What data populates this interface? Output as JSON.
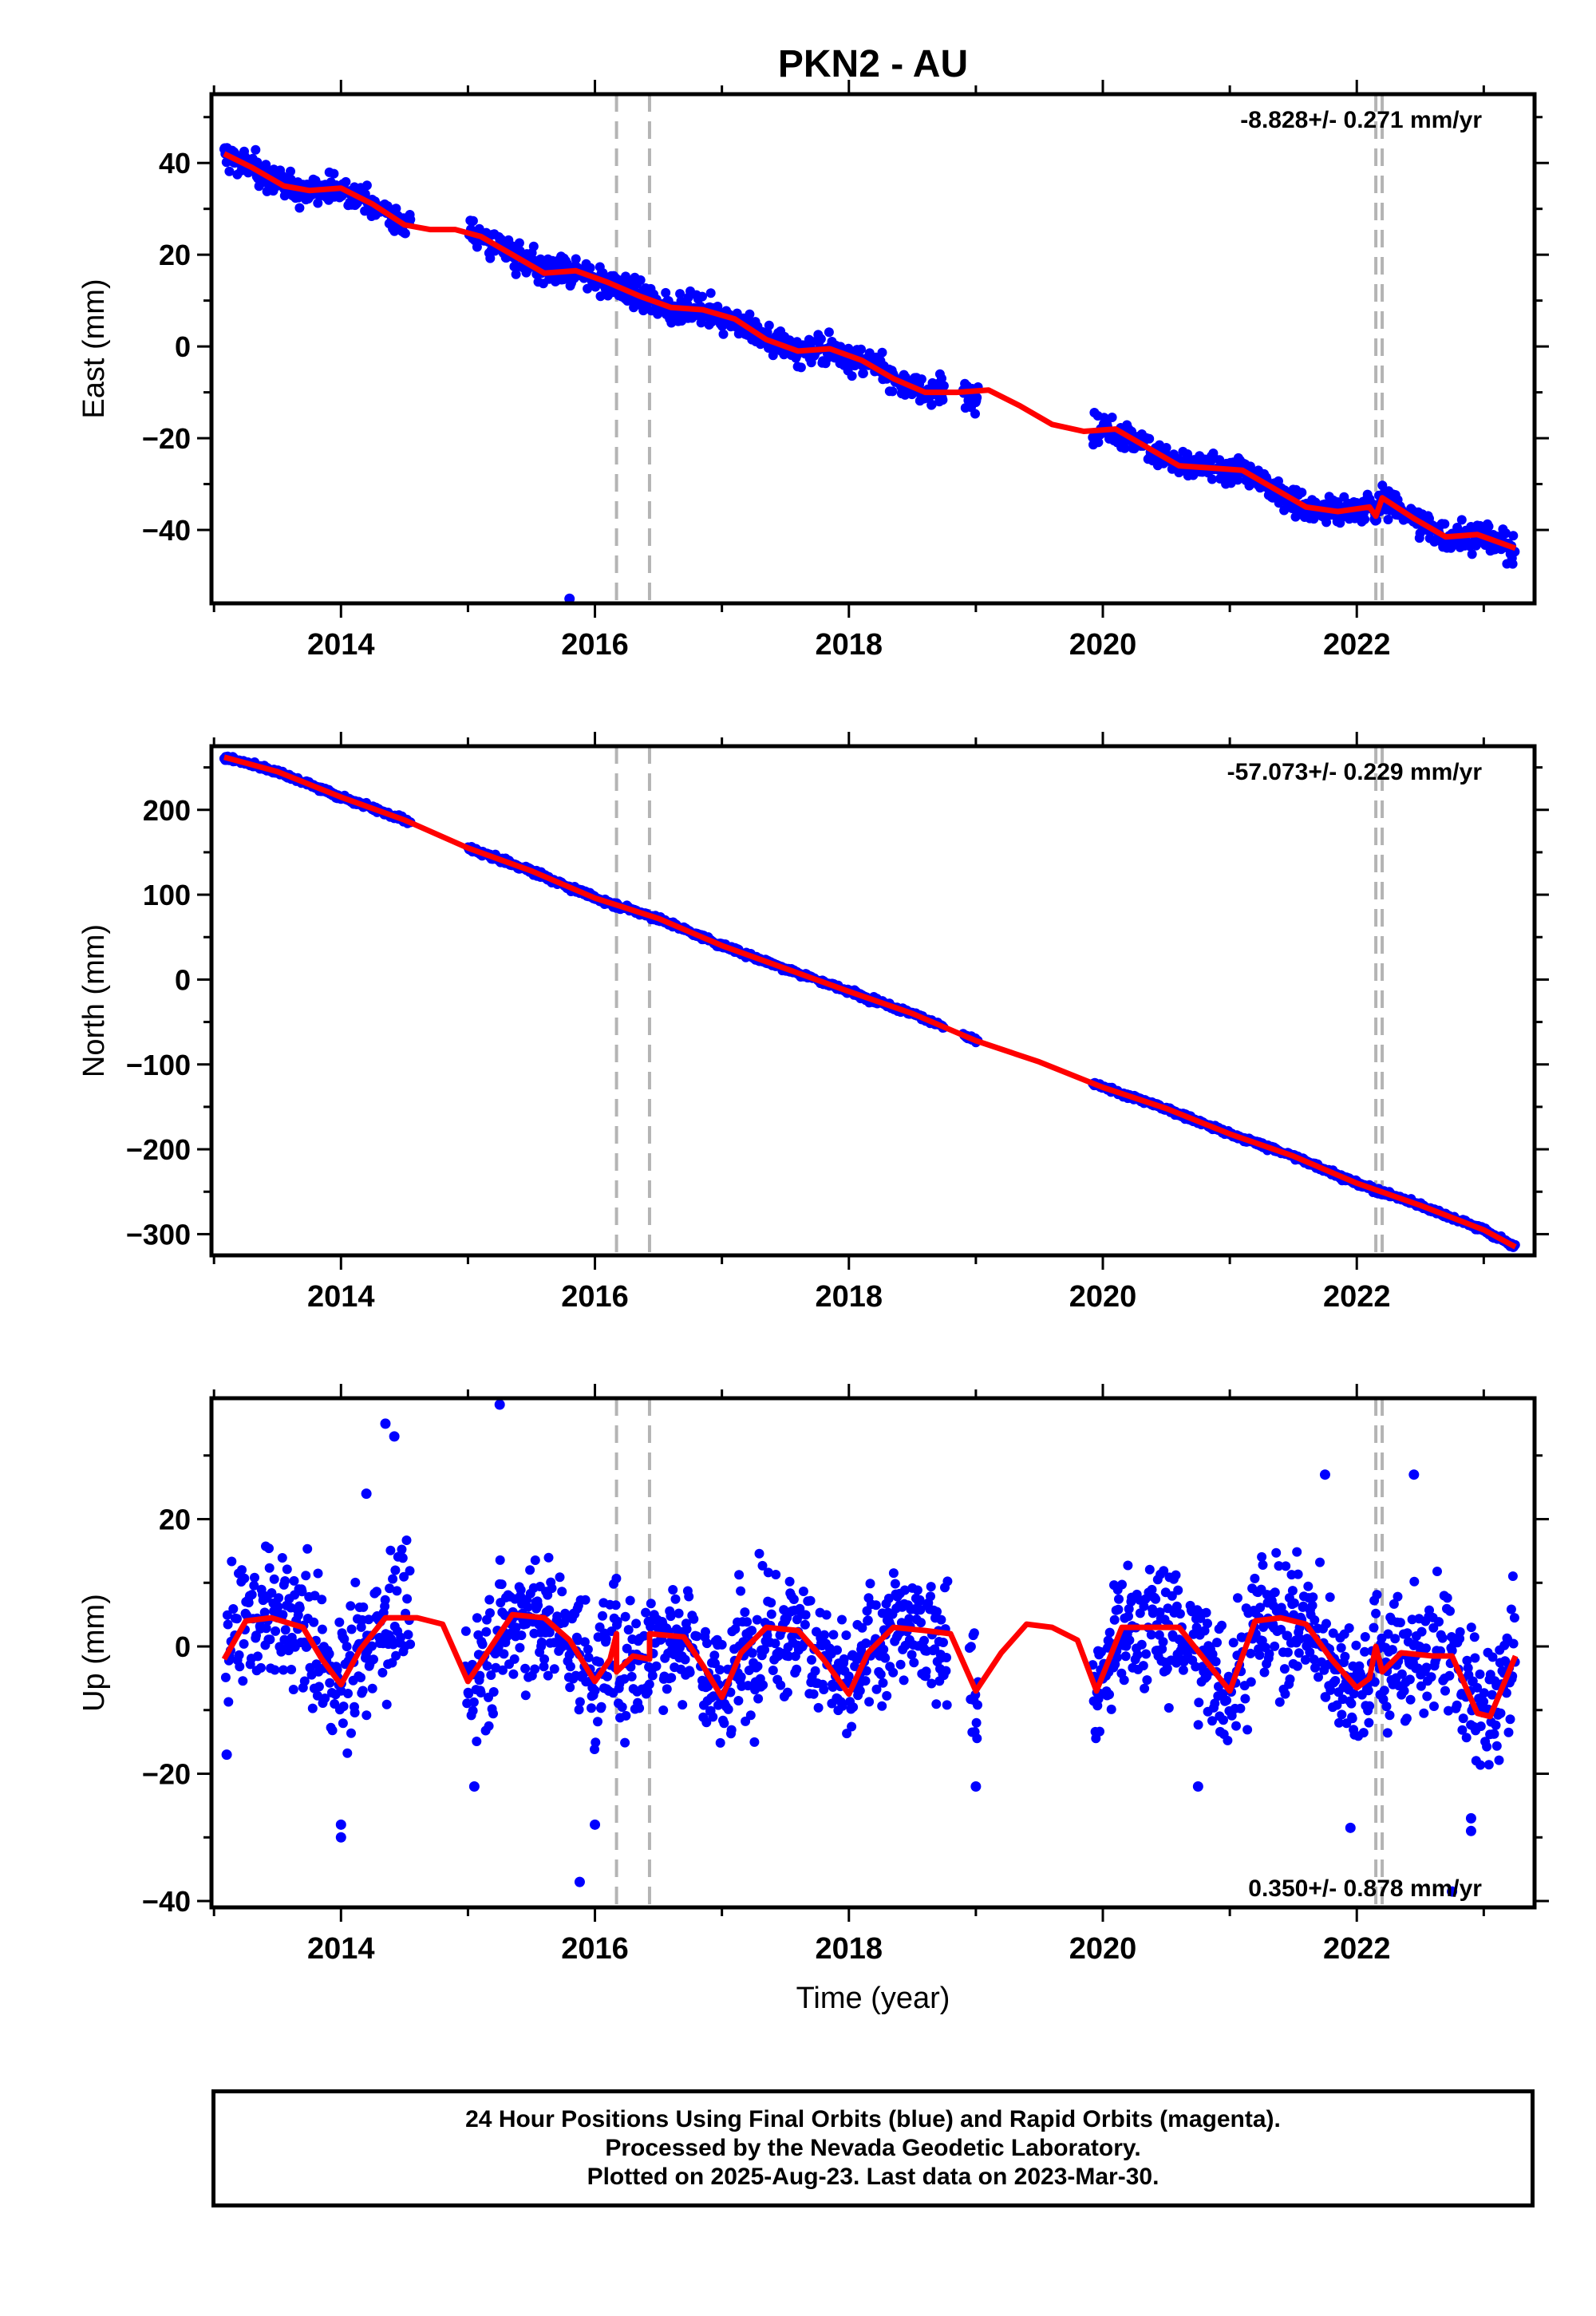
{
  "title": "PKN2 - AU",
  "xlabel": "Time (year)",
  "colors": {
    "data": "#0000ff",
    "model": "#ff0000",
    "offset": "#b4b4b4"
  },
  "footer": {
    "line1": "24 Hour Positions Using Final Orbits (blue) and Rapid Orbits (magenta).",
    "line2": "Processed by the Nevada Geodetic Laboratory.",
    "line3": "Plotted on 2025-Aug-23. Last data on 2023-Mar-30."
  },
  "chart_data": [
    {
      "type": "scatter",
      "id": "east",
      "ylabel": "East (mm)",
      "rate_label": "-8.828+/- 0.271 mm/yr",
      "rate_position": "top-right",
      "xlim": [
        2012.98,
        2023.4
      ],
      "ylim": [
        -56,
        55
      ],
      "xticks": [
        2014,
        2016,
        2018,
        2020,
        2022
      ],
      "xtick_labels": [
        "2014",
        "2016",
        "2018",
        "2020",
        "2022"
      ],
      "yticks": [
        -40,
        -20,
        0,
        20,
        40
      ],
      "ytick_labels": [
        "−40",
        "−20",
        "0",
        "20",
        "40"
      ],
      "offset_lines": [
        2016.17,
        2016.43,
        2022.15,
        2022.2
      ],
      "model_line": {
        "x": [
          2013.08,
          2013.3,
          2013.55,
          2013.75,
          2014.0,
          2014.25,
          2014.5,
          2014.7,
          2014.9,
          2015.1,
          2015.35,
          2015.6,
          2015.85,
          2016.1,
          2016.35,
          2016.6,
          2016.85,
          2017.1,
          2017.35,
          2017.6,
          2017.85,
          2018.1,
          2018.35,
          2018.6,
          2018.85,
          2019.1,
          2019.35,
          2019.6,
          2019.85,
          2020.1,
          2020.35,
          2020.6,
          2020.85,
          2021.1,
          2021.35,
          2021.6,
          2021.85,
          2022.1,
          2022.15,
          2022.2,
          2022.45,
          2022.7,
          2022.95,
          2023.25
        ],
        "y": [
          42,
          39,
          35,
          34,
          34.5,
          31,
          26.5,
          25.5,
          25.5,
          24,
          20,
          16,
          16.5,
          14,
          11,
          8.5,
          8,
          6,
          1.5,
          -1,
          -0.5,
          -3,
          -7,
          -10,
          -10,
          -9.5,
          -13,
          -17,
          -18.5,
          -18,
          -22,
          -26,
          -26.5,
          -27,
          -31,
          -35,
          -36,
          -35,
          -37,
          -33,
          -37.5,
          -41.5,
          -41,
          -44
        ]
      },
      "observed_notes": "dense daily positions 2013.08–2014.55, 2015.0–2018.75, 2018.9–2019.02, 2019.92–2023.25; outlier near 2015.8 at -55",
      "outliers": [
        {
          "x": 2015.8,
          "y": -55
        }
      ]
    },
    {
      "type": "scatter",
      "id": "north",
      "ylabel": "North (mm)",
      "rate_label": "-57.073+/- 0.229 mm/yr",
      "rate_position": "top-right",
      "xlim": [
        2012.98,
        2023.4
      ],
      "ylim": [
        -325,
        275
      ],
      "xticks": [
        2014,
        2016,
        2018,
        2020,
        2022
      ],
      "xtick_labels": [
        "2014",
        "2016",
        "2018",
        "2020",
        "2022"
      ],
      "yticks": [
        -300,
        -200,
        -100,
        0,
        100,
        200
      ],
      "ytick_labels": [
        "−300",
        "−200",
        "−100",
        "0",
        "100",
        "200"
      ],
      "offset_lines": [
        2016.17,
        2016.43,
        2022.15,
        2022.2
      ],
      "model_line": {
        "x": [
          2013.08,
          2013.5,
          2014.0,
          2014.5,
          2015.0,
          2015.5,
          2016.0,
          2016.5,
          2017.0,
          2017.5,
          2018.0,
          2018.5,
          2019.0,
          2019.5,
          2020.0,
          2020.5,
          2021.0,
          2021.5,
          2022.0,
          2022.5,
          2023.0,
          2023.25
        ],
        "y": [
          262,
          245,
          215,
          188,
          155,
          128,
          96,
          72,
          40,
          13,
          -14,
          -40,
          -72,
          -97,
          -127,
          -152,
          -182,
          -208,
          -240,
          -266,
          -295,
          -315
        ]
      },
      "observed_notes": "daily positions follow model tightly within a few mm",
      "outliers": []
    },
    {
      "type": "scatter",
      "id": "up",
      "ylabel": "Up (mm)",
      "rate_label": "0.350+/- 0.878 mm/yr",
      "rate_position": "bottom-right",
      "xlim": [
        2012.98,
        2023.4
      ],
      "ylim": [
        -41,
        39
      ],
      "xticks": [
        2014,
        2016,
        2018,
        2020,
        2022
      ],
      "xtick_labels": [
        "2014",
        "2016",
        "2018",
        "2020",
        "2022"
      ],
      "yticks": [
        -40,
        -20,
        0,
        20
      ],
      "ytick_labels": [
        "−40",
        "−20",
        "0",
        "20"
      ],
      "offset_lines": [
        2016.17,
        2016.43,
        2022.15,
        2022.2
      ],
      "model_line": {
        "x": [
          2013.08,
          2013.25,
          2013.45,
          2013.7,
          2013.85,
          2014.0,
          2014.15,
          2014.35,
          2014.6,
          2014.8,
          2015.0,
          2015.15,
          2015.35,
          2015.6,
          2015.8,
          2016.0,
          2016.12,
          2016.17,
          2016.17,
          2016.3,
          2016.43,
          2016.43,
          2016.7,
          2016.85,
          2017.0,
          2017.15,
          2017.35,
          2017.6,
          2017.8,
          2018.0,
          2018.15,
          2018.35,
          2018.6,
          2018.8,
          2019.0,
          2019.2,
          2019.4,
          2019.6,
          2019.8,
          2019.95,
          2020.15,
          2020.35,
          2020.6,
          2020.8,
          2021.0,
          2021.2,
          2021.4,
          2021.6,
          2021.8,
          2022.0,
          2022.1,
          2022.15,
          2022.2,
          2022.35,
          2022.6,
          2022.75,
          2022.95,
          2023.05,
          2023.25
        ],
        "y": [
          -2,
          4,
          4.5,
          3,
          -2,
          -6,
          -0.5,
          4.5,
          4.5,
          3.5,
          -5.5,
          -1,
          5,
          4.5,
          1,
          -5.5,
          -2,
          2,
          -4,
          -1.5,
          -2,
          2,
          1.5,
          -3,
          -8,
          -1,
          3,
          2.5,
          -2,
          -7.5,
          -1,
          3,
          2.5,
          2,
          -7,
          -1,
          3.5,
          3,
          1,
          -7,
          3,
          3,
          3,
          -2,
          -7,
          4,
          4.5,
          3.5,
          -2,
          -6.5,
          -5,
          0,
          -4,
          -1,
          -1.5,
          -1.5,
          -10.5,
          -11,
          -1.5
        ]
      },
      "observed_notes": "scatter roughly ±15 mm around model; data gaps 2014.55–2015.0 and 2019.05–2019.92",
      "outliers": [
        {
          "x": 2015.25,
          "y": 38
        },
        {
          "x": 2014.35,
          "y": 35
        },
        {
          "x": 2014.42,
          "y": 33
        },
        {
          "x": 2014.2,
          "y": 24
        },
        {
          "x": 2015.88,
          "y": -37
        },
        {
          "x": 2014.0,
          "y": -30
        },
        {
          "x": 2014.0,
          "y": -28
        },
        {
          "x": 2021.75,
          "y": 27
        },
        {
          "x": 2022.45,
          "y": 27
        },
        {
          "x": 2016.0,
          "y": -28
        },
        {
          "x": 2022.9,
          "y": -29
        },
        {
          "x": 2022.9,
          "y": -27
        },
        {
          "x": 2022.75,
          "y": -38.5
        },
        {
          "x": 2021.95,
          "y": -28.5
        },
        {
          "x": 2019.0,
          "y": -22
        },
        {
          "x": 2020.75,
          "y": -22
        },
        {
          "x": 2015.05,
          "y": -22
        },
        {
          "x": 2013.1,
          "y": -17
        }
      ]
    }
  ]
}
